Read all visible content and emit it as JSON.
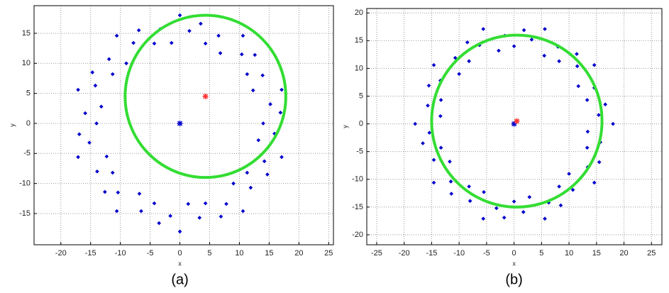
{
  "chart_data": [
    {
      "type": "scatter",
      "caption": "(a)",
      "xlabel": "x",
      "ylabel": "y",
      "xlim": [
        -24.5,
        25.8
      ],
      "ylim": [
        -20.2,
        19.6
      ],
      "xticks": [
        -20,
        -15,
        -10,
        -5,
        0,
        5,
        10,
        15,
        20,
        25
      ],
      "yticks": [
        -15,
        -10,
        -5,
        0,
        5,
        10,
        15
      ],
      "grid": true,
      "color": "#0000cc",
      "x": [
        14,
        16.9,
        15.2,
        17.1,
        12.3,
        13.9,
        11.3,
        12.6,
        10.4,
        10.6,
        6.8,
        6.5,
        4.3,
        3.5,
        1.6,
        0,
        -1.4,
        -3.3,
        -4.3,
        -6.9,
        -7.8,
        -10.6,
        -9.0,
        -11.9,
        -11.3,
        -14.7,
        -14.2,
        -17.1,
        -13.2,
        -15.9,
        -14,
        -16.9,
        -15.2,
        -17.1,
        -12.3,
        -13.9,
        -11.3,
        -12.6,
        -10.4,
        -10.6,
        -6.8,
        -6.5,
        -4.3,
        -3.5,
        -1.6,
        0,
        1.4,
        3.3,
        4.3,
        6.9,
        7.8,
        10.6,
        9.0,
        11.9,
        11.3,
        14.7,
        14.2,
        17.1,
        13.2,
        15.9
      ],
      "y": [
        0,
        1.8,
        3.2,
        5.6,
        5.5,
        8.0,
        8.2,
        11.4,
        11.5,
        14.6,
        11.7,
        14.6,
        13.3,
        16.6,
        15.4,
        18,
        13.4,
        15.7,
        13.3,
        15.5,
        13.4,
        14.6,
        10.0,
        10.7,
        8.2,
        8.5,
        6.3,
        5.6,
        2.8,
        1.7,
        0,
        -1.8,
        -3.2,
        -5.6,
        -5.5,
        -8.0,
        -8.2,
        -11.4,
        -11.5,
        -14.6,
        -11.7,
        -14.6,
        -13.3,
        -16.6,
        -15.4,
        -18,
        -13.4,
        -15.7,
        -13.3,
        -15.5,
        -13.4,
        -14.6,
        -10.0,
        -10.7,
        -8.2,
        -8.5,
        -6.3,
        -5.6,
        -2.8,
        -1.7
      ],
      "fit_circle": {
        "center_x": 4.3,
        "center_y": 4.5,
        "radius": 13.5,
        "color": "#33dd33"
      },
      "markers": [
        {
          "x": 0,
          "y": 0,
          "color": "#0000cc"
        },
        {
          "x": 4.3,
          "y": 4.5,
          "color": "#ff3333"
        }
      ]
    },
    {
      "type": "scatter",
      "caption": "(b)",
      "xlabel": "x",
      "ylabel": "y",
      "xlim": [
        -26.8,
        26.9
      ],
      "ylim": [
        -21.8,
        20.8
      ],
      "xticks": [
        -25,
        -20,
        -15,
        -10,
        -5,
        0,
        5,
        10,
        15,
        20,
        25
      ],
      "yticks": [
        -20,
        -15,
        -10,
        -5,
        0,
        5,
        10,
        15,
        20
      ],
      "grid": true,
      "color": "#0000cc",
      "x": [
        0,
        1.8,
        3.2,
        5.6,
        5.5,
        8.0,
        8.2,
        11.4,
        11.5,
        14.6,
        11.7,
        14.6,
        13.3,
        16.6,
        15.4,
        18,
        13.4,
        15.7,
        13.3,
        15.5,
        13.4,
        14.6,
        10.0,
        10.7,
        8.2,
        8.5,
        6.3,
        5.6,
        2.8,
        1.7,
        0,
        -1.8,
        -3.2,
        -5.6,
        -5.5,
        -8.0,
        -8.2,
        -11.4,
        -11.5,
        -14.6,
        -11.7,
        -14.6,
        -13.3,
        -16.6,
        -15.4,
        -18,
        -13.4,
        -15.7,
        -13.3,
        -15.5,
        -13.4,
        -14.6,
        -10.0,
        -10.7,
        -8.2,
        -8.5,
        -6.3,
        -5.6,
        -2.8,
        -1.7
      ],
      "y": [
        14,
        16.9,
        15.2,
        17.1,
        12.3,
        13.9,
        11.3,
        12.6,
        10.4,
        10.6,
        6.8,
        6.5,
        4.3,
        3.5,
        1.6,
        0,
        -1.4,
        -3.3,
        -4.3,
        -6.9,
        -7.8,
        -10.6,
        -9.0,
        -11.9,
        -11.3,
        -14.7,
        -14.2,
        -17.1,
        -13.2,
        -15.9,
        -14,
        -16.9,
        -15.2,
        -17.1,
        -12.3,
        -13.9,
        -11.3,
        -12.6,
        -10.4,
        -10.6,
        -6.8,
        -6.5,
        -4.3,
        -3.5,
        -1.6,
        0,
        1.4,
        3.3,
        4.3,
        6.9,
        7.8,
        10.6,
        9.0,
        11.9,
        11.3,
        14.7,
        14.2,
        17.1,
        13.2,
        15.9
      ],
      "fit_circle": {
        "center_x": 0.5,
        "center_y": 0.5,
        "radius": 15.5,
        "color": "#33dd33"
      },
      "markers": [
        {
          "x": 0,
          "y": 0,
          "color": "#0000cc"
        },
        {
          "x": 0.5,
          "y": 0.5,
          "color": "#ff3333"
        }
      ]
    }
  ]
}
